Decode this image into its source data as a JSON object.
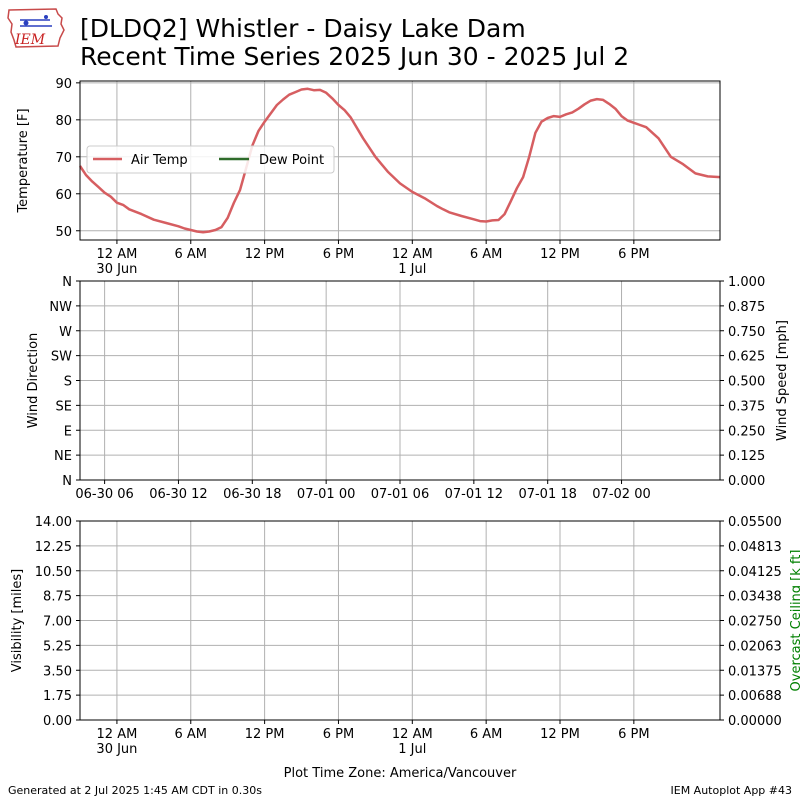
{
  "header": {
    "title_line1": "[DLDQ2] Whistler - Daisy Lake Dam",
    "title_line2": "Recent Time Series 2025 Jun 30 - 2025 Jul 2",
    "logo_text": "IEM"
  },
  "footer": {
    "generated": "Generated at 2 Jul 2025 1:45 AM CDT in 0.30s",
    "app": "IEM Autoplot App #43",
    "timezone_label": "Plot Time Zone: America/Vancouver"
  },
  "colors": {
    "air_temp": "#d65e61",
    "dew_point": "#2e6b2a",
    "grid": "#b0b0b0",
    "ceiling_label": "#008000"
  },
  "chart_data": [
    {
      "type": "line",
      "x_unit": "hours since 2025-06-29 20:00 (America/Vancouver)",
      "ylabel": "Temperature [F]",
      "xlim": [
        0,
        52
      ],
      "ylim": [
        47.5,
        90.5
      ],
      "yticks": [
        50,
        60,
        70,
        80,
        90
      ],
      "xticks": [
        {
          "x": 3,
          "label": "12 AM",
          "sub": "30 Jun"
        },
        {
          "x": 9,
          "label": "6 AM"
        },
        {
          "x": 15,
          "label": "12 PM"
        },
        {
          "x": 21,
          "label": "6 PM"
        },
        {
          "x": 27,
          "label": "12 AM",
          "sub": "1 Jul"
        },
        {
          "x": 33,
          "label": "6 AM"
        },
        {
          "x": 39,
          "label": "12 PM"
        },
        {
          "x": 45,
          "label": "6 PM"
        }
      ],
      "legend": {
        "placement": "upper-left",
        "entries": [
          "Air Temp",
          "Dew Point"
        ]
      },
      "grid": true,
      "series": [
        {
          "name": "Air Temp",
          "x": [
            0,
            0.5,
            1,
            1.5,
            2,
            2.5,
            3,
            3.5,
            4,
            5,
            6,
            7,
            8,
            8.5,
            9,
            9.5,
            10,
            10.5,
            11,
            11.5,
            12,
            12.5,
            13,
            13.5,
            14,
            14.5,
            15,
            16,
            16.5,
            17,
            17.5,
            18,
            18.5,
            19,
            19.5,
            20,
            20.5,
            21,
            21.5,
            22,
            23,
            24,
            25,
            26,
            27,
            28,
            29,
            29.5,
            30,
            31,
            32,
            32.5,
            33,
            33.5,
            34,
            34.5,
            35,
            35.5,
            36,
            36.5,
            37,
            37.5,
            38,
            38.5,
            39,
            39.5,
            40,
            40.5,
            41,
            41.5,
            42,
            42.5,
            43,
            43.5,
            44,
            44.5,
            45,
            45.5,
            46,
            47,
            48,
            49,
            50,
            51,
            52
          ],
          "values": [
            67.5,
            65.0,
            63.3,
            61.8,
            60.3,
            59.2,
            57.6,
            57.0,
            55.8,
            54.5,
            53.0,
            52.1,
            51.2,
            50.6,
            50.2,
            49.8,
            49.6,
            49.8,
            50.2,
            51.0,
            53.5,
            57.5,
            61.0,
            67.0,
            73.0,
            77.0,
            79.5,
            84.0,
            85.5,
            86.8,
            87.5,
            88.2,
            88.4,
            88.0,
            88.1,
            87.3,
            85.8,
            84.0,
            82.6,
            80.6,
            75.0,
            70.0,
            66.0,
            62.8,
            60.5,
            58.8,
            56.7,
            55.8,
            55.0,
            54.0,
            53.1,
            52.6,
            52.5,
            52.8,
            52.9,
            54.5,
            58.0,
            61.5,
            64.5,
            70.0,
            76.5,
            79.5,
            80.5,
            81.0,
            80.8,
            81.5,
            82.0,
            83.0,
            84.2,
            85.2,
            85.6,
            85.4,
            84.3,
            83.0,
            81.0,
            79.8,
            79.2,
            78.6,
            78.0,
            75.0,
            70.0,
            68.0,
            65.5,
            64.7,
            64.5
          ]
        },
        {
          "name": "Dew Point",
          "x": [],
          "values": []
        }
      ]
    },
    {
      "type": "line",
      "ylabel": "Wind Direction",
      "ylabel_right": "Wind Speed [mph]",
      "xlim": [
        0,
        52
      ],
      "yticks": [
        "N",
        "NE",
        "E",
        "SE",
        "S",
        "SW",
        "W",
        "NW",
        "N"
      ],
      "yticks_right": [
        "0.000",
        "0.125",
        "0.250",
        "0.375",
        "0.500",
        "0.625",
        "0.750",
        "0.875",
        "1.000"
      ],
      "xticks": [
        {
          "x": 2,
          "label": "06-30 06"
        },
        {
          "x": 8,
          "label": "06-30 12"
        },
        {
          "x": 14,
          "label": "06-30 18"
        },
        {
          "x": 20,
          "label": "07-01 00"
        },
        {
          "x": 26,
          "label": "07-01 06"
        },
        {
          "x": 32,
          "label": "07-01 12"
        },
        {
          "x": 38,
          "label": "07-01 18"
        },
        {
          "x": 44,
          "label": "07-02 00"
        }
      ],
      "grid": true,
      "series": []
    },
    {
      "type": "line",
      "ylabel": "Visibility [miles]",
      "ylabel_right": "Overcast Ceiling [k ft]",
      "xlim": [
        0,
        52
      ],
      "ylim": [
        0,
        14
      ],
      "yticks": [
        "0.00",
        "1.75",
        "3.50",
        "5.25",
        "7.00",
        "8.75",
        "10.50",
        "12.25",
        "14.00"
      ],
      "yticks_right": [
        "0.00000",
        "0.00688",
        "0.01375",
        "0.02063",
        "0.02750",
        "0.03438",
        "0.04125",
        "0.04813",
        "0.05500"
      ],
      "xticks": [
        {
          "x": 3,
          "label": "12 AM",
          "sub": "30 Jun"
        },
        {
          "x": 9,
          "label": "6 AM"
        },
        {
          "x": 15,
          "label": "12 PM"
        },
        {
          "x": 21,
          "label": "6 PM"
        },
        {
          "x": 27,
          "label": "12 AM",
          "sub": "1 Jul"
        },
        {
          "x": 33,
          "label": "6 AM"
        },
        {
          "x": 39,
          "label": "12 PM"
        },
        {
          "x": 45,
          "label": "6 PM"
        }
      ],
      "grid": true,
      "series": []
    }
  ]
}
